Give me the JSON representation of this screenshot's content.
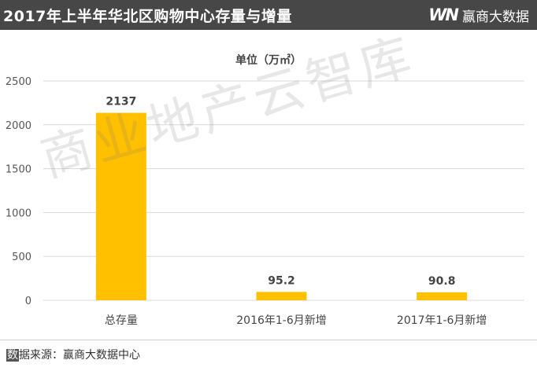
{
  "header": {
    "title": "2017年上半年华北区购物中心存量与增量",
    "brand_logo": "WN",
    "brand_name": "赢商大数据"
  },
  "watermark": "商业地产云智库",
  "source": {
    "lead": "数",
    "rest": "据来源：赢商大数据中心"
  },
  "chart_data": {
    "type": "bar",
    "title": "单位（万㎡）",
    "categories": [
      "总存量",
      "2016年1-6月新增",
      "2017年1-6月新增"
    ],
    "values": [
      2137,
      95.2,
      90.8
    ],
    "value_labels": [
      "2137",
      "95.2",
      "90.8"
    ],
    "ylim": [
      0,
      2500
    ],
    "yticks": [
      0,
      500,
      1000,
      1500,
      2000,
      2500
    ],
    "grid": true,
    "bar_color": "#FFC000",
    "grid_color": "#D9D9D9"
  }
}
